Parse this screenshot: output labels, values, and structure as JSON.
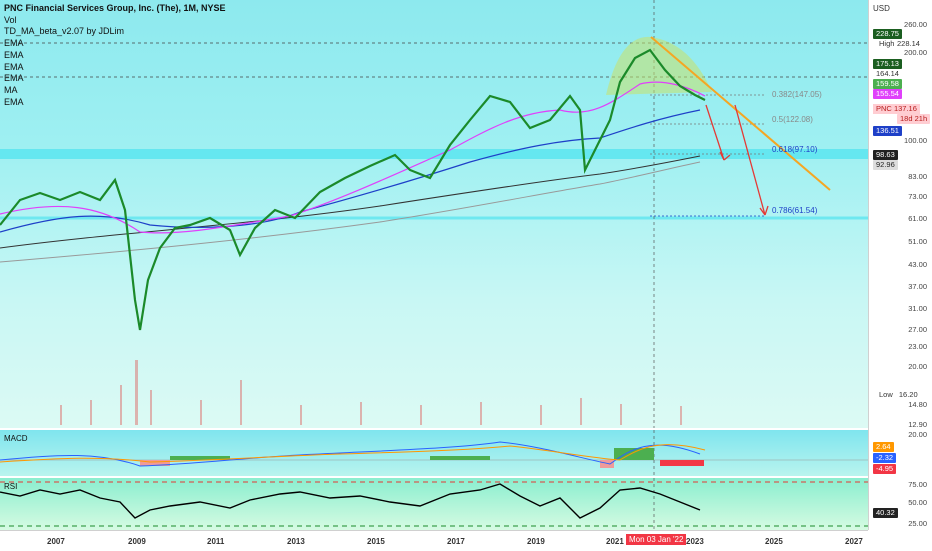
{
  "legend": {
    "title": "PNC Financial Services Group, Inc. (The), 1M, NYSE",
    "lines": [
      "Vol",
      "TD_MA_beta_v2.07 by JDLim",
      "EMA",
      "EMA",
      "EMA",
      "EMA",
      "MA",
      "EMA"
    ]
  },
  "currency": "USD",
  "price_ticks": [
    "260.00",
    "200.00",
    "100.00",
    "83.00",
    "73.00",
    "61.00",
    "51.00",
    "43.00",
    "37.00",
    "31.00",
    "27.00",
    "23.00",
    "20.00",
    "14.80",
    "12.90"
  ],
  "price_tags": [
    {
      "text": "228.75",
      "bg": "#1b5e20",
      "fg": "#ffffff"
    },
    {
      "label": "High",
      "text": "228.14",
      "bg": "#ffffff",
      "fg": "#333333"
    },
    {
      "text": "175.13",
      "bg": "#1b5e20",
      "fg": "#ffffff"
    },
    {
      "text": "164.14",
      "bg": "#ffffff",
      "fg": "#333333"
    },
    {
      "text": "159.58",
      "bg": "#4caf50",
      "fg": "#ffffff"
    },
    {
      "text": "155.54",
      "bg": "#e040fb",
      "fg": "#ffffff"
    },
    {
      "label": "PNC",
      "text": "137.16",
      "bg": "#ffcdd2",
      "fg": "#b71c1c"
    },
    {
      "text": "18d 21h",
      "bg": "#ffcdd2",
      "fg": "#b71c1c"
    },
    {
      "text": "136.51",
      "bg": "#1e40c8",
      "fg": "#ffffff"
    },
    {
      "text": "98.63",
      "bg": "#222222",
      "fg": "#ffffff"
    },
    {
      "text": "92.96",
      "bg": "#dddddd",
      "fg": "#222222"
    },
    {
      "label": "Low",
      "text": "16.20",
      "bg": "#ffffff",
      "fg": "#333333"
    }
  ],
  "fib_levels": [
    {
      "ratio": "0.382",
      "price": "147.05",
      "text": "0.382(147.05)"
    },
    {
      "ratio": "0.5",
      "price": "122.08",
      "text": "0.5(122.08)"
    },
    {
      "ratio": "0.618",
      "price": "97.10",
      "text": "0.618(97.10)"
    },
    {
      "ratio": "0.786",
      "price": "61.54",
      "text": "0.786(61.54)"
    }
  ],
  "macd": {
    "label": "MACD",
    "ticks": [
      "20.00"
    ],
    "tags": [
      {
        "text": "2.64",
        "bg": "#ff9800",
        "fg": "#ffffff"
      },
      {
        "text": "-2.32",
        "bg": "#2962ff",
        "fg": "#ffffff"
      },
      {
        "text": "-4.95",
        "bg": "#f23645",
        "fg": "#ffffff"
      }
    ]
  },
  "rsi": {
    "label": "RSI",
    "ticks": [
      "75.00",
      "50.00",
      "25.00"
    ],
    "tags": [
      {
        "text": "40.32",
        "bg": "#222222",
        "fg": "#ffffff"
      }
    ]
  },
  "time_axis": {
    "years": [
      "2007",
      "2009",
      "2011",
      "2013",
      "2015",
      "2017",
      "2019",
      "2021",
      "2023",
      "2025",
      "2027"
    ],
    "cursor_label": "Mon 03 Jan '22"
  },
  "colors": {
    "up": "#1b8a2a",
    "down": "#e0312f",
    "ema_blue": "#1e40c8",
    "ema_pink": "#e040fb",
    "trend_orange": "#f5a623",
    "arrow_red": "#e53935",
    "highlight_band": "#5ee6f0"
  }
}
